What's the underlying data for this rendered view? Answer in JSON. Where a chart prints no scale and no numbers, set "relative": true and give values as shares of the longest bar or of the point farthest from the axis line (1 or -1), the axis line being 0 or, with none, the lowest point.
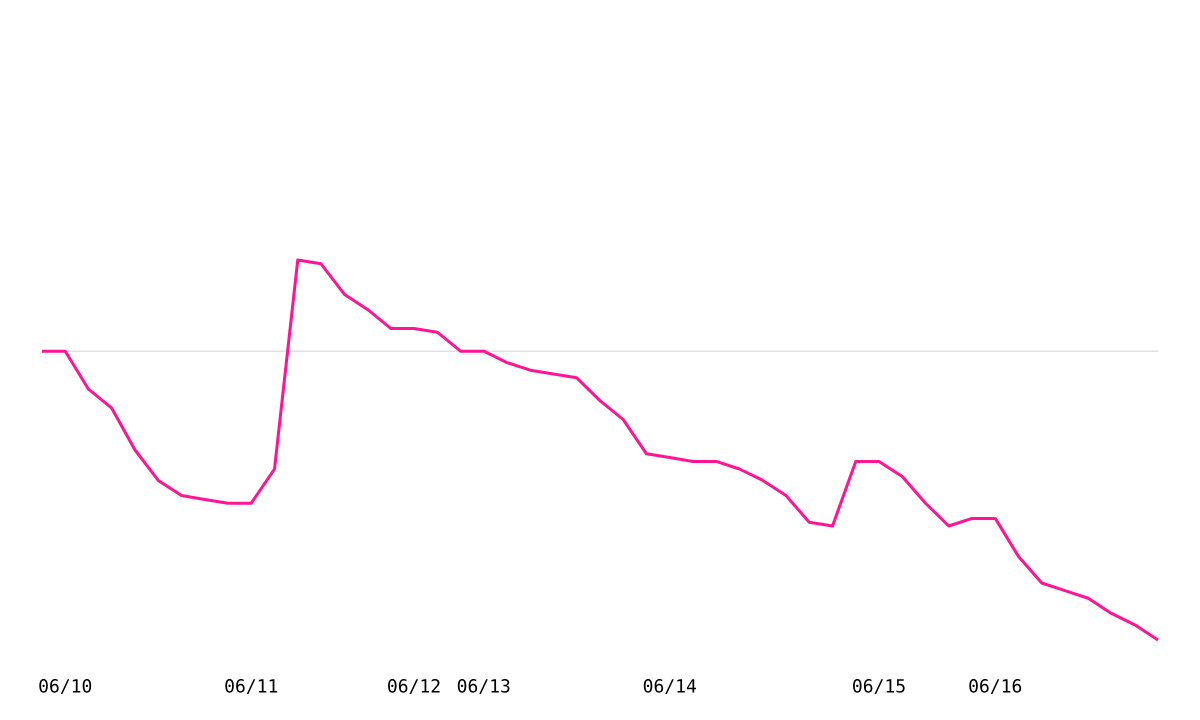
{
  "chart_data": {
    "type": "line",
    "relative": true,
    "color": "#ff1493",
    "categories": [
      null,
      "06/10",
      null,
      null,
      null,
      null,
      null,
      null,
      null,
      "06/11",
      null,
      null,
      null,
      null,
      null,
      null,
      "06/12",
      null,
      null,
      "06/13",
      null,
      null,
      null,
      null,
      null,
      null,
      null,
      "06/14",
      null,
      null,
      null,
      null,
      null,
      null,
      null,
      null,
      "06/15",
      null,
      null,
      null,
      null,
      "06/16",
      null,
      null,
      null,
      null,
      null,
      null,
      null
    ],
    "values": [
      0.76,
      0.76,
      0.66,
      0.61,
      0.5,
      0.42,
      0.38,
      0.37,
      0.36,
      0.36,
      0.45,
      1,
      0.99,
      0.91,
      0.87,
      0.82,
      0.82,
      0.81,
      0.76,
      0.76,
      0.73,
      0.71,
      0.7,
      0.69,
      0.63,
      0.58,
      0.49,
      0.48,
      0.47,
      0.47,
      0.45,
      0.42,
      0.38,
      0.31,
      0.3,
      0.47,
      0.47,
      0.43,
      0.36,
      0.3,
      0.32,
      0.32,
      0.22,
      0.15,
      0.13,
      0.11,
      0.07,
      0.04,
      0
    ],
    "ref_lines": [
      {
        "axis": "y",
        "value": 0.76,
        "color": "#e0e0e0"
      }
    ]
  }
}
